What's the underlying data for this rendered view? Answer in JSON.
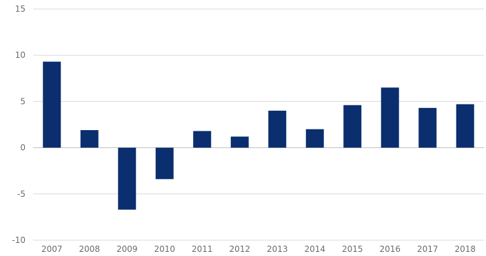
{
  "chart_data": {
    "type": "bar",
    "title": "",
    "xlabel": "",
    "ylabel": "",
    "categories": [
      "2007",
      "2008",
      "2009",
      "2010",
      "2011",
      "2012",
      "2013",
      "2014",
      "2015",
      "2016",
      "2017",
      "2018"
    ],
    "values": [
      9.3,
      1.9,
      -6.7,
      -3.4,
      1.8,
      1.2,
      4.0,
      2.0,
      4.6,
      6.5,
      4.3,
      4.7
    ],
    "ylim": [
      -10,
      15
    ],
    "yticks": [
      "15",
      "10",
      "5",
      "0",
      "-5",
      "-10"
    ],
    "grid": true,
    "legend": "none",
    "bar_color": "#0a2e6e"
  }
}
